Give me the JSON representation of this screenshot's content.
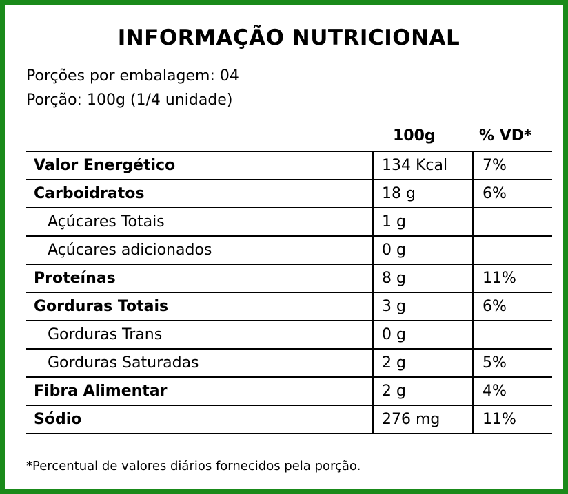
{
  "colors": {
    "border": "#1a8a1a",
    "text": "#000000",
    "background": "#ffffff"
  },
  "title": "INFORMAÇÃO NUTRICIONAL",
  "servings_per_package": "Porções por embalagem: 04",
  "serving_size": "Porção: 100g (1/4 unidade)",
  "columns": {
    "quantity": "100g",
    "daily_value": "% VD*"
  },
  "rows": [
    {
      "name": "Valor Energético",
      "quantity": "134 Kcal",
      "daily_value": "7%"
    },
    {
      "name": "Carboidratos",
      "quantity": "18 g",
      "daily_value": "6%"
    },
    {
      "name": "Açúcares Totais",
      "quantity": "1 g",
      "daily_value": ""
    },
    {
      "name": "Açúcares adicionados",
      "quantity": "0 g",
      "daily_value": ""
    },
    {
      "name": "Proteínas",
      "quantity": "8 g",
      "daily_value": "11%"
    },
    {
      "name": "Gorduras Totais",
      "quantity": "3 g",
      "daily_value": "6%"
    },
    {
      "name": "Gorduras Trans",
      "quantity": "0 g",
      "daily_value": ""
    },
    {
      "name": "Gorduras Saturadas",
      "quantity": "2 g",
      "daily_value": "5%"
    },
    {
      "name": "Fibra Alimentar",
      "quantity": "2 g",
      "daily_value": "4%"
    },
    {
      "name": "Sódio",
      "quantity": "276 mg",
      "daily_value": "11%"
    }
  ],
  "footnote": "*Percentual de valores diários fornecidos pela porção."
}
